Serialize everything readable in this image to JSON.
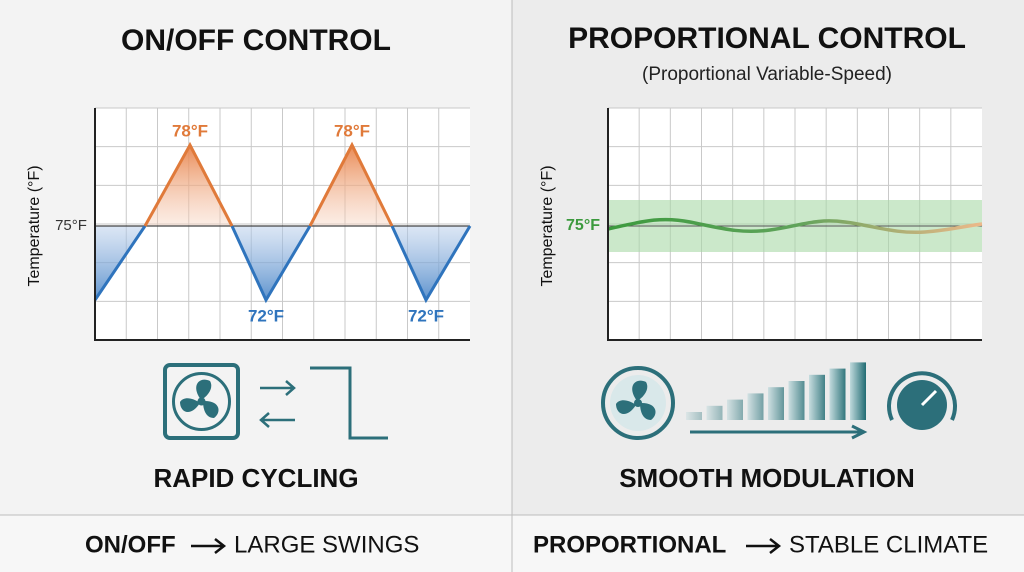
{
  "left": {
    "title": "ON/OFF CONTROL",
    "axis_label": "Temperature (°F)",
    "setpoint_label": "75°F",
    "peak_labels": [
      "78°F",
      "78°F"
    ],
    "trough_labels": [
      "72°F",
      "72°F"
    ],
    "caption": "RAPID CYCLING"
  },
  "right": {
    "title": "PROPORTIONAL CONTROL",
    "subtitle": "(Proportional Variable-Speed)",
    "axis_label": "Temperature (°F)",
    "setpoint_label": "75°F",
    "caption": "SMOOTH MODULATION"
  },
  "footer": {
    "left": {
      "bold": "ON/OFF",
      "text": "LARGE SWINGS"
    },
    "right": {
      "bold": "PROPORTIONAL",
      "text": "STABLE CLIMATE"
    }
  }
}
